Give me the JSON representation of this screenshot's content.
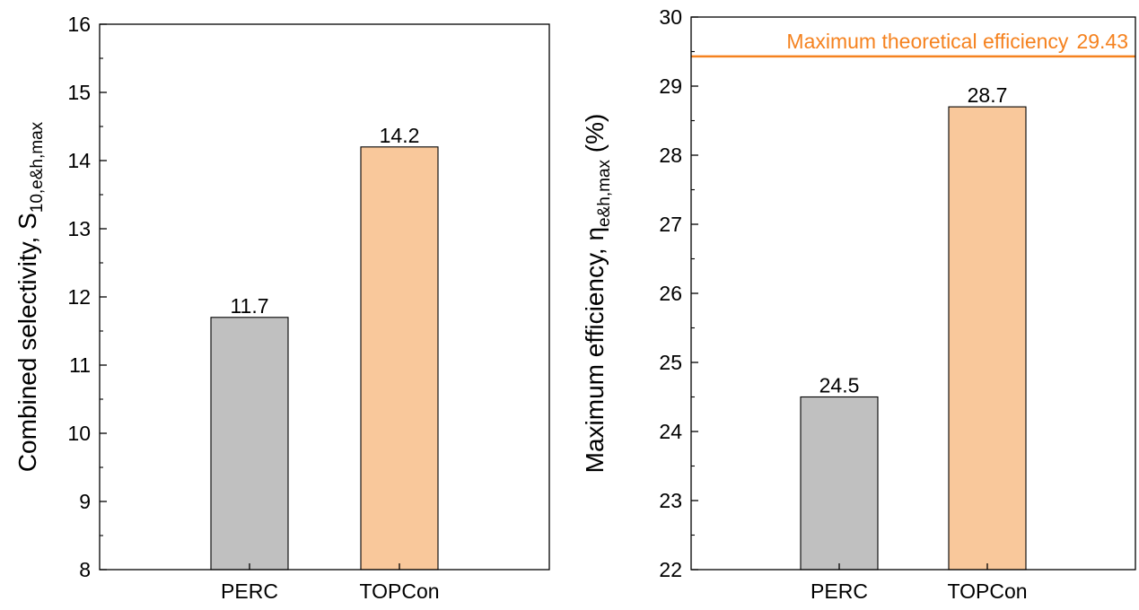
{
  "chart_data": [
    {
      "type": "bar",
      "categories": [
        "PERC",
        "TOPCon"
      ],
      "values": [
        11.7,
        14.2
      ],
      "data_labels": [
        "11.7",
        "14.2"
      ],
      "colors": [
        "#c0c0c0",
        "#f9c89b"
      ],
      "ylim": [
        8,
        16
      ],
      "yticks": [
        "8",
        "9",
        "10",
        "11",
        "12",
        "13",
        "14",
        "15",
        "16"
      ],
      "ylabel": {
        "main": "Combined selectivity, S",
        "sub": "10,e&h,max"
      },
      "title": ""
    },
    {
      "type": "bar",
      "categories": [
        "PERC",
        "TOPCon"
      ],
      "values": [
        24.5,
        28.7
      ],
      "data_labels": [
        "24.5",
        "28.7"
      ],
      "colors": [
        "#c0c0c0",
        "#f9c89b"
      ],
      "ylim": [
        22,
        30
      ],
      "yticks": [
        "22",
        "23",
        "24",
        "25",
        "26",
        "27",
        "28",
        "29",
        "30"
      ],
      "ylabel": {
        "main": "Maximum efficiency, η",
        "sub": "e&h,max",
        "unit": " (%)"
      },
      "reference_line": {
        "value": 29.43,
        "label": "Maximum theoretical efficiency",
        "value_label": "29.43",
        "color": "#f5821f"
      },
      "title": ""
    }
  ]
}
